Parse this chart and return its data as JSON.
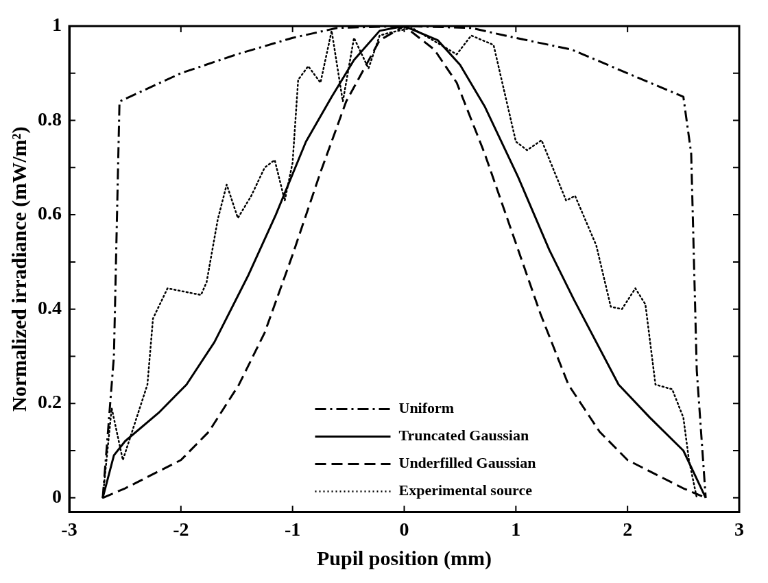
{
  "chart_data": {
    "type": "line",
    "xlabel": "Pupil position (mm)",
    "ylabel": "Normalized irradiance (mW/m²)",
    "xlim": [
      -3,
      3
    ],
    "ylim": [
      -0.03,
      1
    ],
    "xticks": [
      -3,
      -2,
      -1,
      0,
      1,
      2,
      3
    ],
    "yticks": [
      0,
      {
        "value": 0.1,
        "label": null
      },
      0.2,
      {
        "value": 0.3,
        "label": null
      },
      0.4,
      {
        "value": 0.5,
        "label": null
      },
      0.6,
      {
        "value": 0.7,
        "label": null
      },
      0.8,
      {
        "value": 0.9,
        "label": null
      },
      1
    ],
    "grid": false,
    "legend": "bottom",
    "marker": "none",
    "series": [
      {
        "name": "Uniform",
        "color": "#000000",
        "line_style": "dashdot",
        "x": [
          -2.7,
          -2.6,
          -2.55,
          -2.0,
          -1.5,
          -1.0,
          -0.6,
          0,
          0.6,
          0.9,
          1.5,
          2.0,
          2.5,
          2.57,
          2.62,
          2.7
        ],
        "values": [
          0,
          0.3,
          0.84,
          0.9,
          0.94,
          0.975,
          0.996,
          1,
          0.996,
          0.98,
          0.95,
          0.9,
          0.85,
          0.73,
          0.27,
          0
        ]
      },
      {
        "name": "Truncated Gaussian",
        "color": "#000000",
        "line_style": "solid",
        "x": [
          -2.7,
          -2.6,
          -2.5,
          -2.2,
          -1.95,
          -1.7,
          -1.4,
          -1.15,
          -0.88,
          -0.65,
          -0.45,
          -0.22,
          0,
          0.3,
          0.5,
          0.72,
          1.02,
          1.3,
          1.52,
          1.92,
          2.2,
          2.5,
          2.7
        ],
        "values": [
          0,
          0.09,
          0.12,
          0.18,
          0.24,
          0.33,
          0.47,
          0.6,
          0.755,
          0.85,
          0.928,
          0.99,
          1,
          0.97,
          0.918,
          0.83,
          0.68,
          0.525,
          0.42,
          0.24,
          0.17,
          0.1,
          0
        ]
      },
      {
        "name": "Underfilled Gaussian",
        "color": "#000000",
        "line_style": "dashed",
        "x": [
          -2.7,
          -2.5,
          -2.0,
          -1.75,
          -1.48,
          -1.25,
          -1.0,
          -0.75,
          -0.52,
          -0.22,
          0,
          0.27,
          0.47,
          0.72,
          0.97,
          1.22,
          1.47,
          1.75,
          2.0,
          2.5,
          2.7
        ],
        "values": [
          0,
          0.02,
          0.08,
          0.14,
          0.24,
          0.35,
          0.515,
          0.69,
          0.84,
          0.97,
          1,
          0.95,
          0.88,
          0.73,
          0.56,
          0.39,
          0.24,
          0.14,
          0.08,
          0.02,
          0
        ]
      },
      {
        "name": "Experimental source",
        "color": "#000000",
        "line_style": "dotted",
        "x": [
          -2.7,
          -2.62,
          -2.52,
          -2.3,
          -2.25,
          -2.12,
          -1.82,
          -1.77,
          -1.67,
          -1.59,
          -1.49,
          -1.37,
          -1.25,
          -1.16,
          -1.07,
          -1.0,
          -0.95,
          -0.86,
          -0.75,
          -0.65,
          -0.55,
          -0.45,
          -0.32,
          -0.22,
          -0.13,
          0.07,
          0.47,
          0.6,
          0.8,
          1.0,
          1.1,
          1.23,
          1.45,
          1.53,
          1.72,
          1.85,
          1.95,
          2.07,
          2.16,
          2.25,
          2.4,
          2.5,
          2.55,
          2.62
        ],
        "values": [
          0,
          0.19,
          0.08,
          0.24,
          0.38,
          0.444,
          0.43,
          0.457,
          0.59,
          0.664,
          0.593,
          0.64,
          0.7,
          0.716,
          0.63,
          0.71,
          0.886,
          0.915,
          0.88,
          0.99,
          0.84,
          0.975,
          0.91,
          0.98,
          0.986,
          0.996,
          0.94,
          0.98,
          0.96,
          0.755,
          0.737,
          0.758,
          0.63,
          0.64,
          0.535,
          0.405,
          0.4,
          0.444,
          0.41,
          0.24,
          0.23,
          0.17,
          0.08,
          0
        ]
      }
    ]
  }
}
